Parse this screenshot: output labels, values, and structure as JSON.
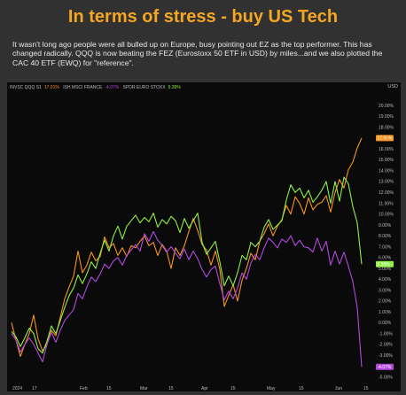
{
  "title": "In terms of stress - buy US Tech",
  "description": "It wasn't long ago people were all bulled up on Europe, busy pointing out EZ as the top performer. This has changed radically. QQQ is now beating the FEZ (Eurostoxx 50 ETF in USD) by miles...and we also plotted the CAC 40 ETF (EWQ) for \"reference\".",
  "chart_data": {
    "type": "line",
    "currency": "USD",
    "x_ticks": [
      "2024",
      "17",
      "Feb",
      "15",
      "Mar",
      "15",
      "Apr",
      "15",
      "May",
      "15",
      "Jun",
      "15"
    ],
    "y_ticks": [
      "20.00%",
      "19.00%",
      "18.00%",
      "17.00%",
      "16.00%",
      "15.00%",
      "14.00%",
      "13.00%",
      "12.00%",
      "11.00%",
      "10.00%",
      "9.00%",
      "8.00%",
      "7.00%",
      "6.00%",
      "5.00%",
      "4.00%",
      "3.00%",
      "2.00%",
      "1.00%",
      "0.00%",
      "-1.00%",
      "-2.00%",
      "-3.00%",
      "-4.00%",
      "-5.00%"
    ],
    "ylim": [
      -5.6,
      21
    ],
    "series": [
      {
        "name": "INVSC QQQ S1",
        "last_label": "17.01%",
        "color": "#f7931e",
        "values": [
          0.0,
          -1.6,
          -3.1,
          -2.0,
          -1.0,
          0.7,
          -1.5,
          -2.6,
          -2.0,
          -0.7,
          -1.2,
          0.5,
          2.2,
          3.3,
          4.3,
          6.6,
          4.6,
          5.3,
          6.5,
          5.7,
          6.1,
          7.9,
          6.9,
          7.3,
          6.2,
          6.9,
          6.1,
          7.1,
          6.9,
          7.5,
          8.0,
          7.1,
          7.4,
          6.2,
          7.2,
          6.6,
          5.0,
          6.9,
          6.2,
          7.1,
          8.4,
          9.6,
          8.5,
          7.2,
          6.7,
          5.3,
          6.6,
          4.9,
          1.5,
          2.5,
          3.5,
          2.0,
          3.9,
          5.0,
          6.4,
          5.8,
          7.5,
          8.2,
          9.1,
          8.0,
          8.9,
          9.5,
          10.8,
          10.0,
          11.6,
          11.0,
          10.0,
          11.5,
          10.4,
          10.9,
          11.1,
          11.7,
          10.2,
          12.0,
          13.2,
          12.4,
          14.1,
          14.8,
          16.1,
          17.01
        ]
      },
      {
        "name": "ISH MSCI FRANCE",
        "last_label": "-4.07%",
        "color": "#b347e0",
        "values": [
          -1.0,
          -1.6,
          -2.7,
          -2.0,
          -1.4,
          -2.0,
          -2.8,
          -3.6,
          -2.0,
          -0.9,
          -1.8,
          -0.7,
          0.2,
          0.7,
          1.2,
          2.7,
          2.2,
          3.3,
          4.2,
          3.8,
          4.5,
          5.4,
          5.0,
          5.7,
          6.0,
          5.3,
          6.2,
          6.7,
          7.2,
          6.6,
          8.2,
          7.5,
          8.4,
          7.6,
          7.1,
          6.5,
          7.0,
          6.4,
          5.9,
          6.8,
          5.8,
          6.6,
          5.9,
          4.9,
          4.2,
          4.9,
          5.2,
          3.6,
          2.1,
          2.9,
          2.2,
          3.2,
          4.6,
          4.0,
          5.5,
          6.3,
          5.8,
          6.9,
          7.8,
          7.4,
          6.9,
          7.7,
          7.4,
          8.0,
          7.1,
          7.6,
          7.0,
          6.9,
          6.5,
          7.8,
          6.6,
          7.5,
          5.3,
          6.6,
          5.4,
          6.5,
          5.2,
          3.8,
          1.4,
          -4.07
        ]
      },
      {
        "name": "SPDR EURO STOXX",
        "last_label": "5.39%",
        "color": "#8ef044",
        "values": [
          -0.8,
          -1.3,
          -2.2,
          -1.4,
          -0.5,
          -1.0,
          -2.4,
          -2.8,
          -1.7,
          -0.3,
          -1.0,
          0.2,
          1.4,
          2.5,
          3.2,
          4.4,
          3.6,
          4.5,
          5.6,
          5.0,
          6.4,
          7.6,
          6.6,
          8.0,
          8.9,
          7.7,
          8.9,
          9.4,
          9.9,
          9.2,
          9.7,
          9.3,
          10.1,
          8.8,
          9.5,
          9.1,
          9.8,
          9.4,
          8.3,
          9.6,
          8.7,
          9.4,
          10.1,
          7.4,
          6.3,
          6.9,
          7.5,
          5.6,
          3.4,
          4.3,
          3.4,
          4.6,
          6.2,
          5.8,
          7.4,
          7.0,
          7.5,
          8.8,
          9.5,
          8.6,
          9.0,
          9.4,
          11.3,
          12.7,
          12.0,
          12.4,
          11.5,
          12.2,
          11.1,
          11.6,
          12.2,
          13.0,
          11.0,
          13.0,
          11.2,
          13.4,
          12.8,
          10.7,
          9.2,
          5.39
        ]
      }
    ],
    "legend_position": "top-left",
    "grid": false
  }
}
